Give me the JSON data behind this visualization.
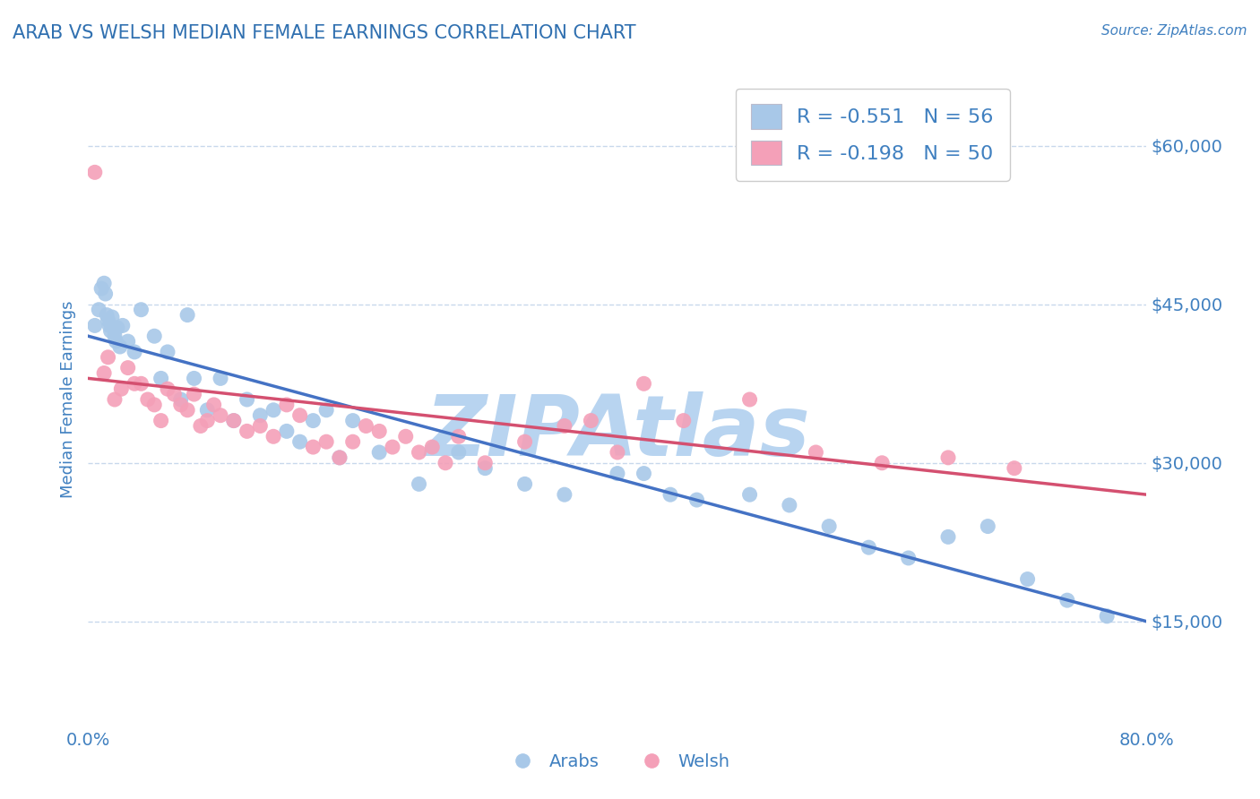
{
  "title": "ARAB VS WELSH MEDIAN FEMALE EARNINGS CORRELATION CHART",
  "source": "Source: ZipAtlas.com",
  "ylabel": "Median Female Earnings",
  "xlim": [
    0.0,
    80.0
  ],
  "ylim": [
    5000,
    67000
  ],
  "yticks": [
    15000,
    30000,
    45000,
    60000
  ],
  "ytick_labels": [
    "$15,000",
    "$30,000",
    "$45,000",
    "$60,000"
  ],
  "arab_R": -0.551,
  "arab_N": 56,
  "welsh_R": -0.198,
  "welsh_N": 50,
  "arab_color": "#a8c8e8",
  "welsh_color": "#f4a0b8",
  "arab_line_color": "#4472c4",
  "welsh_line_color": "#d45070",
  "title_color": "#3070b0",
  "axis_color": "#4080c0",
  "watermark": "ZIPAtlas",
  "watermark_color": "#b8d4f0",
  "background_color": "#ffffff",
  "grid_color": "#c8d8ec",
  "arab_scatter_x": [
    0.5,
    0.8,
    1.0,
    1.2,
    1.3,
    1.4,
    1.5,
    1.6,
    1.7,
    1.8,
    2.0,
    2.1,
    2.2,
    2.4,
    2.6,
    3.0,
    3.5,
    4.0,
    5.0,
    5.5,
    6.0,
    7.0,
    7.5,
    8.0,
    9.0,
    10.0,
    11.0,
    12.0,
    13.0,
    14.0,
    15.0,
    16.0,
    17.0,
    18.0,
    19.0,
    20.0,
    22.0,
    25.0,
    28.0,
    30.0,
    33.0,
    36.0,
    40.0,
    42.0,
    44.0,
    46.0,
    50.0,
    53.0,
    56.0,
    59.0,
    62.0,
    65.0,
    68.0,
    71.0,
    74.0,
    77.0
  ],
  "arab_scatter_y": [
    43000,
    44500,
    46500,
    47000,
    46000,
    44000,
    43500,
    43000,
    42500,
    43800,
    42000,
    41500,
    42800,
    41000,
    43000,
    41500,
    40500,
    44500,
    42000,
    38000,
    40500,
    36000,
    44000,
    38000,
    35000,
    38000,
    34000,
    36000,
    34500,
    35000,
    33000,
    32000,
    34000,
    35000,
    30500,
    34000,
    31000,
    28000,
    31000,
    29500,
    28000,
    27000,
    29000,
    29000,
    27000,
    26500,
    27000,
    26000,
    24000,
    22000,
    21000,
    23000,
    24000,
    19000,
    17000,
    15500
  ],
  "welsh_scatter_x": [
    0.5,
    1.2,
    1.5,
    2.0,
    2.5,
    3.0,
    3.5,
    4.0,
    4.5,
    5.0,
    5.5,
    6.0,
    6.5,
    7.0,
    7.5,
    8.0,
    8.5,
    9.0,
    9.5,
    10.0,
    11.0,
    12.0,
    13.0,
    14.0,
    15.0,
    16.0,
    17.0,
    18.0,
    19.0,
    20.0,
    21.0,
    22.0,
    23.0,
    24.0,
    25.0,
    26.0,
    27.0,
    28.0,
    30.0,
    33.0,
    36.0,
    38.0,
    40.0,
    42.0,
    45.0,
    50.0,
    55.0,
    60.0,
    65.0,
    70.0
  ],
  "welsh_scatter_y": [
    57500,
    38500,
    40000,
    36000,
    37000,
    39000,
    37500,
    37500,
    36000,
    35500,
    34000,
    37000,
    36500,
    35500,
    35000,
    36500,
    33500,
    34000,
    35500,
    34500,
    34000,
    33000,
    33500,
    32500,
    35500,
    34500,
    31500,
    32000,
    30500,
    32000,
    33500,
    33000,
    31500,
    32500,
    31000,
    31500,
    30000,
    32500,
    30000,
    32000,
    33500,
    34000,
    31000,
    37500,
    34000,
    36000,
    31000,
    30000,
    30500,
    29500
  ]
}
